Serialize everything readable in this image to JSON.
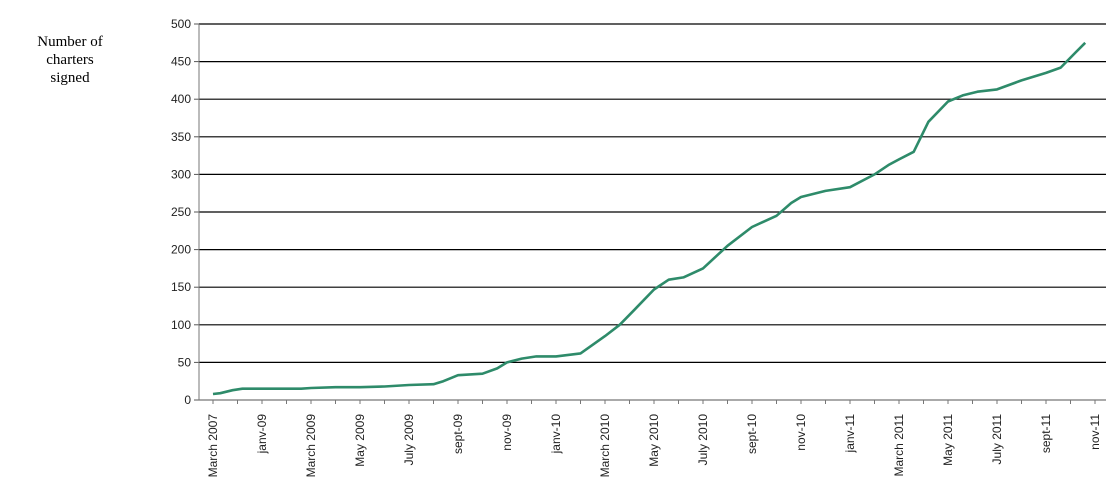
{
  "chart_data": {
    "type": "line",
    "title": "",
    "ylabel": "Number of charters signed",
    "ylim": [
      0,
      500
    ],
    "yticks": [
      0,
      50,
      100,
      150,
      200,
      250,
      300,
      350,
      400,
      450,
      500
    ],
    "grid": true,
    "color": "#2e8b6a",
    "xtick_labels": [
      "March 2007",
      "janv-09",
      "March 2009",
      "May 2009",
      "July 2009",
      "sept-09",
      "nov-09",
      "janv-10",
      "March 2010",
      "May 2010",
      "July 2010",
      "sept-10",
      "nov-10",
      "janv-11",
      "March 2011",
      "May 2011",
      "July 2011",
      "sept-11",
      "nov-11"
    ],
    "points": [
      {
        "x": 0,
        "y": 8
      },
      {
        "x": 0.15,
        "y": 9
      },
      {
        "x": 0.4,
        "y": 13
      },
      {
        "x": 0.6,
        "y": 15
      },
      {
        "x": 1.0,
        "y": 15
      },
      {
        "x": 1.5,
        "y": 15
      },
      {
        "x": 1.8,
        "y": 15
      },
      {
        "x": 2.0,
        "y": 16
      },
      {
        "x": 2.5,
        "y": 17
      },
      {
        "x": 3.0,
        "y": 17
      },
      {
        "x": 3.5,
        "y": 18
      },
      {
        "x": 4.0,
        "y": 20
      },
      {
        "x": 4.5,
        "y": 21
      },
      {
        "x": 4.7,
        "y": 25
      },
      {
        "x": 5.0,
        "y": 33
      },
      {
        "x": 5.5,
        "y": 35
      },
      {
        "x": 5.8,
        "y": 42
      },
      {
        "x": 6.0,
        "y": 50
      },
      {
        "x": 6.3,
        "y": 55
      },
      {
        "x": 6.6,
        "y": 58
      },
      {
        "x": 7.0,
        "y": 58
      },
      {
        "x": 7.5,
        "y": 62
      },
      {
        "x": 8.0,
        "y": 85
      },
      {
        "x": 8.3,
        "y": 100
      },
      {
        "x": 8.6,
        "y": 120
      },
      {
        "x": 9.0,
        "y": 147
      },
      {
        "x": 9.3,
        "y": 160
      },
      {
        "x": 9.6,
        "y": 163
      },
      {
        "x": 10.0,
        "y": 175
      },
      {
        "x": 10.5,
        "y": 205
      },
      {
        "x": 11.0,
        "y": 230
      },
      {
        "x": 11.5,
        "y": 245
      },
      {
        "x": 11.8,
        "y": 262
      },
      {
        "x": 12.0,
        "y": 270
      },
      {
        "x": 12.5,
        "y": 278
      },
      {
        "x": 13.0,
        "y": 283
      },
      {
        "x": 13.5,
        "y": 300
      },
      {
        "x": 13.8,
        "y": 313
      },
      {
        "x": 14.0,
        "y": 320
      },
      {
        "x": 14.3,
        "y": 330
      },
      {
        "x": 14.6,
        "y": 370
      },
      {
        "x": 15.0,
        "y": 397
      },
      {
        "x": 15.3,
        "y": 405
      },
      {
        "x": 15.6,
        "y": 410
      },
      {
        "x": 16.0,
        "y": 413
      },
      {
        "x": 16.5,
        "y": 425
      },
      {
        "x": 17.0,
        "y": 435
      },
      {
        "x": 17.3,
        "y": 442
      },
      {
        "x": 17.6,
        "y": 462
      },
      {
        "x": 17.8,
        "y": 475
      }
    ]
  }
}
